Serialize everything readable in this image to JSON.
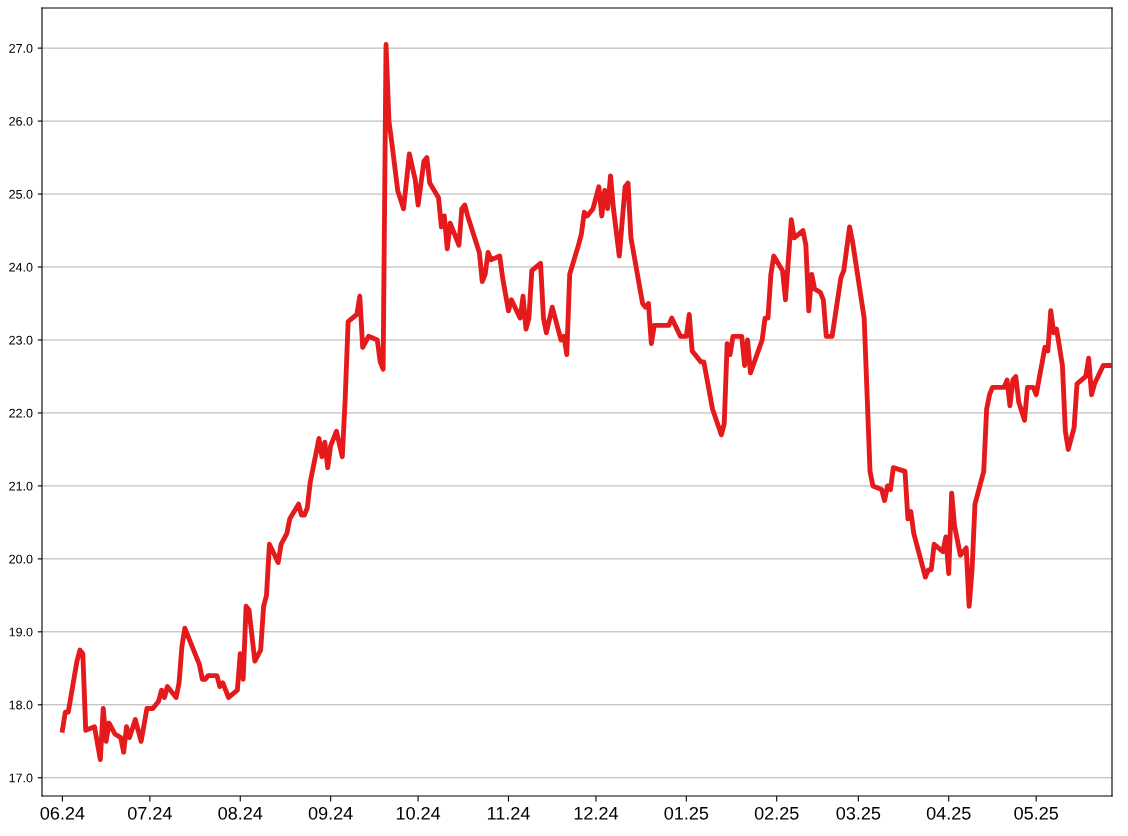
{
  "chart_data": {
    "type": "line",
    "x": [
      "2024-06-01",
      "2024-06-02",
      "2024-06-03",
      "2024-06-06",
      "2024-06-07",
      "2024-06-08",
      "2024-06-09",
      "2024-06-12",
      "2024-06-14",
      "2024-06-15",
      "2024-06-16",
      "2024-06-17",
      "2024-06-19",
      "2024-06-21",
      "2024-06-22",
      "2024-06-23",
      "2024-06-24",
      "2024-06-26",
      "2024-06-28",
      "2024-06-30",
      "2024-07-02",
      "2024-07-04",
      "2024-07-05",
      "2024-07-06",
      "2024-07-07",
      "2024-07-10",
      "2024-07-11",
      "2024-07-12",
      "2024-07-13",
      "2024-07-15",
      "2024-07-18",
      "2024-07-19",
      "2024-07-20",
      "2024-07-21",
      "2024-07-24",
      "2024-07-25",
      "2024-07-26",
      "2024-07-28",
      "2024-07-31",
      "2024-08-01",
      "2024-08-02",
      "2024-08-03",
      "2024-08-04",
      "2024-08-06",
      "2024-08-08",
      "2024-08-09",
      "2024-08-10",
      "2024-08-11",
      "2024-08-14",
      "2024-08-15",
      "2024-08-17",
      "2024-08-18",
      "2024-08-21",
      "2024-08-22",
      "2024-08-23",
      "2024-08-24",
      "2024-08-25",
      "2024-08-28",
      "2024-08-29",
      "2024-08-30",
      "2024-08-31",
      "2024-09-01",
      "2024-09-03",
      "2024-09-05",
      "2024-09-06",
      "2024-09-07",
      "2024-09-10",
      "2024-09-11",
      "2024-09-12",
      "2024-09-14",
      "2024-09-17",
      "2024-09-18",
      "2024-09-19",
      "2024-09-20",
      "2024-09-21",
      "2024-09-22",
      "2024-09-24",
      "2024-09-26",
      "2024-09-28",
      "2024-09-30",
      "2024-10-01",
      "2024-10-03",
      "2024-10-04",
      "2024-10-05",
      "2024-10-08",
      "2024-10-09",
      "2024-10-10",
      "2024-10-11",
      "2024-10-12",
      "2024-10-15",
      "2024-10-16",
      "2024-10-17",
      "2024-10-18",
      "2024-10-22",
      "2024-10-23",
      "2024-10-24",
      "2024-10-25",
      "2024-10-26",
      "2024-10-29",
      "2024-10-30",
      "2024-11-01",
      "2024-11-02",
      "2024-11-05",
      "2024-11-06",
      "2024-11-07",
      "2024-11-08",
      "2024-11-09",
      "2024-11-12",
      "2024-11-13",
      "2024-11-14",
      "2024-11-16",
      "2024-11-19",
      "2024-11-20",
      "2024-11-21",
      "2024-11-22",
      "2024-11-25",
      "2024-11-26",
      "2024-11-27",
      "2024-11-28",
      "2024-11-30",
      "2024-12-02",
      "2024-12-03",
      "2024-12-04",
      "2024-12-05",
      "2024-12-06",
      "2024-12-07",
      "2024-12-09",
      "2024-12-11",
      "2024-12-12",
      "2024-12-13",
      "2024-12-17",
      "2024-12-18",
      "2024-12-19",
      "2024-12-20",
      "2024-12-21",
      "2024-12-26",
      "2024-12-27",
      "2024-12-30",
      "2025-01-01",
      "2025-01-02",
      "2025-01-03",
      "2025-01-06",
      "2025-01-07",
      "2025-01-10",
      "2025-01-13",
      "2025-01-14",
      "2025-01-15",
      "2025-01-16",
      "2025-01-17",
      "2025-01-20",
      "2025-01-21",
      "2025-01-22",
      "2025-01-23",
      "2025-01-27",
      "2025-01-28",
      "2025-01-29",
      "2025-01-30",
      "2025-01-31",
      "2025-02-03",
      "2025-02-04",
      "2025-02-06",
      "2025-02-07",
      "2025-02-10",
      "2025-02-11",
      "2025-02-12",
      "2025-02-13",
      "2025-02-14",
      "2025-02-16",
      "2025-02-17",
      "2025-02-18",
      "2025-02-20",
      "2025-02-23",
      "2025-02-24",
      "2025-02-26",
      "2025-02-27",
      "2025-03-03",
      "2025-03-05",
      "2025-03-06",
      "2025-03-09",
      "2025-03-10",
      "2025-03-11",
      "2025-03-12",
      "2025-03-13",
      "2025-03-17",
      "2025-03-18",
      "2025-03-19",
      "2025-03-20",
      "2025-03-23",
      "2025-03-24",
      "2025-03-25",
      "2025-03-26",
      "2025-03-27",
      "2025-03-30",
      "2025-03-31",
      "2025-04-01",
      "2025-04-02",
      "2025-04-03",
      "2025-04-05",
      "2025-04-07",
      "2025-04-08",
      "2025-04-09",
      "2025-04-10",
      "2025-04-13",
      "2025-04-14",
      "2025-04-15",
      "2025-04-16",
      "2025-04-20",
      "2025-04-21",
      "2025-04-22",
      "2025-04-23",
      "2025-04-24",
      "2025-04-25",
      "2025-04-27",
      "2025-04-28",
      "2025-04-30",
      "2025-05-01",
      "2025-05-04",
      "2025-05-05",
      "2025-05-06",
      "2025-05-07",
      "2025-05-08",
      "2025-05-10",
      "2025-05-11",
      "2025-05-12",
      "2025-05-14",
      "2025-05-15",
      "2025-05-18",
      "2025-05-19",
      "2025-05-20",
      "2025-05-21",
      "2025-05-24",
      "2025-05-26"
    ],
    "series": [
      {
        "color": "#e41a1c",
        "values": [
          17.65,
          17.9,
          17.9,
          18.6,
          18.75,
          18.7,
          17.65,
          17.7,
          17.25,
          17.95,
          17.5,
          17.75,
          17.6,
          17.55,
          17.35,
          17.7,
          17.55,
          17.8,
          17.5,
          17.95,
          17.95,
          18.05,
          18.2,
          18.1,
          18.25,
          18.1,
          18.3,
          18.8,
          19.05,
          18.85,
          18.55,
          18.35,
          18.35,
          18.4,
          18.4,
          18.25,
          18.3,
          18.1,
          18.2,
          18.7,
          18.35,
          19.35,
          19.3,
          18.6,
          18.75,
          19.35,
          19.5,
          20.2,
          19.95,
          20.2,
          20.35,
          20.55,
          20.75,
          20.6,
          20.6,
          20.7,
          21.05,
          21.65,
          21.4,
          21.6,
          21.25,
          21.55,
          21.75,
          21.4,
          22.2,
          23.25,
          23.35,
          23.6,
          22.9,
          23.05,
          23.0,
          22.7,
          22.6,
          27.05,
          26.0,
          25.7,
          25.05,
          24.8,
          25.55,
          25.2,
          24.85,
          25.45,
          25.5,
          25.15,
          24.95,
          24.55,
          24.7,
          24.25,
          24.6,
          24.3,
          24.8,
          24.85,
          24.7,
          24.2,
          23.8,
          23.9,
          24.2,
          24.1,
          24.15,
          23.85,
          23.4,
          23.55,
          23.3,
          23.6,
          23.15,
          23.3,
          23.95,
          24.05,
          23.3,
          23.1,
          23.45,
          23.0,
          23.05,
          22.8,
          23.9,
          24.3,
          24.45,
          24.75,
          24.7,
          24.8,
          25.1,
          24.7,
          25.05,
          24.8,
          25.25,
          24.8,
          24.15,
          25.1,
          25.15,
          24.4,
          23.5,
          23.45,
          23.5,
          22.95,
          23.2,
          23.2,
          23.3,
          23.05,
          23.05,
          23.35,
          22.85,
          22.7,
          22.7,
          22.05,
          21.7,
          21.85,
          22.95,
          22.8,
          23.05,
          23.05,
          22.65,
          23.0,
          22.55,
          23.0,
          23.3,
          23.3,
          23.9,
          24.15,
          23.95,
          23.55,
          24.65,
          24.4,
          24.5,
          24.3,
          23.4,
          23.9,
          23.7,
          23.65,
          23.55,
          23.05,
          23.05,
          23.85,
          23.95,
          24.55,
          24.35,
          23.3,
          21.2,
          21.0,
          20.95,
          20.8,
          21.0,
          20.95,
          21.25,
          21.2,
          20.55,
          20.65,
          20.35,
          19.9,
          19.75,
          19.85,
          19.85,
          20.2,
          20.1,
          20.3,
          19.8,
          20.9,
          20.45,
          20.05,
          20.15,
          19.35,
          19.85,
          20.75,
          21.2,
          22.05,
          22.25,
          22.35,
          22.35,
          22.45,
          22.1,
          22.45,
          22.5,
          22.15,
          21.9,
          22.35,
          22.35,
          22.25,
          22.9,
          22.85,
          23.4,
          23.1,
          23.15,
          22.65,
          21.75,
          21.5,
          21.8,
          22.4,
          22.5,
          22.75,
          22.25,
          22.4,
          22.65,
          22.65
        ]
      }
    ],
    "xlim": [
      "2024-05-25",
      "2025-05-27"
    ],
    "xticks": [
      {
        "value": "2024-06-01",
        "label": "06.24"
      },
      {
        "value": "2024-07-01",
        "label": "07.24"
      },
      {
        "value": "2024-08-01",
        "label": "08.24"
      },
      {
        "value": "2024-09-01",
        "label": "09.24"
      },
      {
        "value": "2024-10-01",
        "label": "10.24"
      },
      {
        "value": "2024-11-01",
        "label": "11.24"
      },
      {
        "value": "2024-12-01",
        "label": "12.24"
      },
      {
        "value": "2025-01-01",
        "label": "01.25"
      },
      {
        "value": "2025-02-01",
        "label": "02.25"
      },
      {
        "value": "2025-03-01",
        "label": "03.25"
      },
      {
        "value": "2025-04-01",
        "label": "04.25"
      },
      {
        "value": "2025-05-01",
        "label": "05.25"
      }
    ],
    "ylim": [
      16.75,
      27.55
    ],
    "yticks": [
      {
        "value": 17,
        "label": "17.0"
      },
      {
        "value": 18,
        "label": "18.0"
      },
      {
        "value": 19,
        "label": "19.0"
      },
      {
        "value": 20,
        "label": "20.0"
      },
      {
        "value": 21,
        "label": "21.0"
      },
      {
        "value": 22,
        "label": "22.0"
      },
      {
        "value": 23,
        "label": "23.0"
      },
      {
        "value": 24,
        "label": "24.0"
      },
      {
        "value": 25,
        "label": "25.0"
      },
      {
        "value": 26,
        "label": "26.0"
      },
      {
        "value": 27,
        "label": "27.0"
      }
    ],
    "grid": "y",
    "marker": "none",
    "line_style": "solid"
  }
}
